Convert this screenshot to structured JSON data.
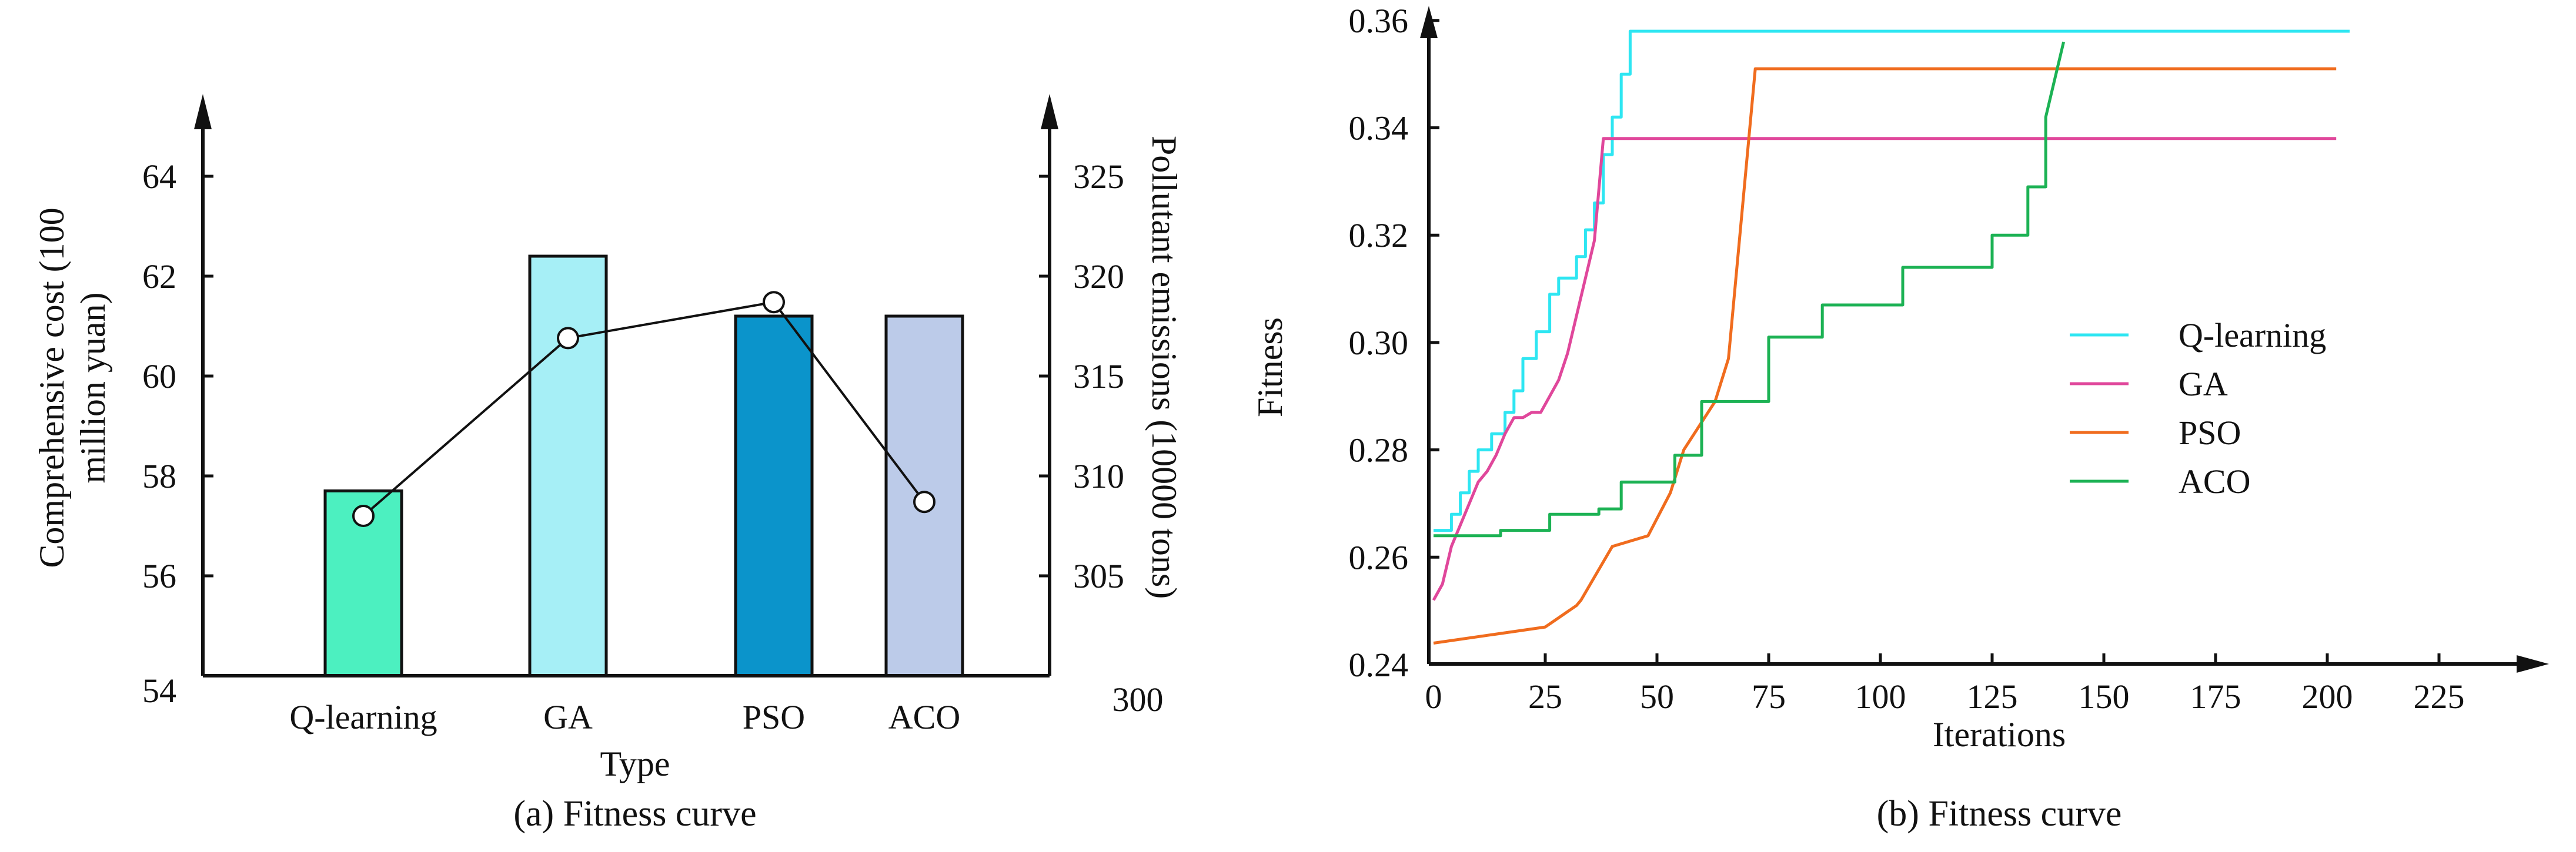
{
  "chart_data": [
    {
      "type": "bar",
      "caption": "(a) Fitness curve",
      "xlabel": "Type",
      "categories": [
        "Q-learning",
        "GA",
        "PSO",
        "ACO"
      ],
      "left_axis": {
        "label": "Comprehensive cost (100 million yuan)",
        "label_lines": [
          "Comprehensive cost (100",
          "million yuan)"
        ],
        "ylim": [
          54,
          66
        ],
        "ticks": [
          54,
          56,
          58,
          60,
          62,
          64
        ]
      },
      "right_axis": {
        "label": "Pollutant emissions (10000 tons)",
        "ylim": [
          300,
          330
        ],
        "ticks": [
          300,
          305,
          310,
          315,
          320,
          325
        ]
      },
      "series": [
        {
          "kind": "bar",
          "axis": "left",
          "values": [
            57.7,
            62.4,
            61.2,
            61.2
          ],
          "colors": [
            "#4cf0c0",
            "#a6eff6",
            "#0b94cb",
            "#bccbe9"
          ]
        },
        {
          "kind": "line",
          "axis": "right",
          "values": [
            308.0,
            316.9,
            318.7,
            308.7
          ],
          "color": "#111111"
        }
      ]
    },
    {
      "type": "line",
      "caption": "(b) Fitness curve",
      "xlabel": "Iterations",
      "ylabel": "Fitness",
      "xlim": [
        0,
        235
      ],
      "ylim": [
        0.24,
        0.364
      ],
      "xticks": [
        0,
        25,
        50,
        75,
        100,
        125,
        150,
        175,
        200,
        225
      ],
      "yticks": [
        "0.24",
        "0.26",
        "0.28",
        "0.30",
        "0.32",
        "0.34",
        "0.36"
      ],
      "legend_position": "right",
      "series": [
        {
          "name": "Q-learning",
          "color": "#2ee6f2",
          "x": [
            0,
            2,
            2,
            4,
            4,
            6,
            6,
            8,
            8,
            10,
            10,
            13,
            13,
            16,
            16,
            18,
            18,
            20,
            20,
            23,
            23,
            26,
            26,
            28,
            28,
            32,
            32,
            34,
            34,
            36,
            36,
            38,
            38,
            40,
            40,
            42,
            42,
            44,
            44,
            205
          ],
          "y": [
            0.265,
            0.265,
            0.265,
            0.265,
            0.268,
            0.268,
            0.272,
            0.272,
            0.276,
            0.276,
            0.28,
            0.28,
            0.283,
            0.283,
            0.287,
            0.287,
            0.291,
            0.291,
            0.297,
            0.297,
            0.302,
            0.302,
            0.309,
            0.309,
            0.312,
            0.312,
            0.316,
            0.316,
            0.321,
            0.321,
            0.326,
            0.326,
            0.335,
            0.335,
            0.342,
            0.342,
            0.35,
            0.35,
            0.358,
            0.358
          ]
        },
        {
          "name": "GA",
          "color": "#e0479b",
          "x": [
            0,
            2,
            4,
            6,
            8,
            10,
            12,
            14,
            16,
            18,
            20,
            22,
            24,
            26,
            28,
            30,
            32,
            34,
            36,
            38,
            202
          ],
          "y": [
            0.252,
            0.255,
            0.262,
            0.266,
            0.27,
            0.274,
            0.276,
            0.279,
            0.283,
            0.286,
            0.286,
            0.287,
            0.287,
            0.29,
            0.293,
            0.298,
            0.305,
            0.312,
            0.319,
            0.338,
            0.338
          ]
        },
        {
          "name": "PSO",
          "color": "#f06c1e",
          "x": [
            0,
            25,
            25,
            32,
            32,
            33,
            33,
            40,
            40,
            48,
            48,
            53,
            53,
            56,
            56,
            63,
            63,
            66,
            66,
            72,
            72,
            202
          ],
          "y": [
            0.244,
            0.247,
            0.247,
            0.251,
            0.251,
            0.252,
            0.252,
            0.262,
            0.262,
            0.264,
            0.264,
            0.272,
            0.272,
            0.28,
            0.28,
            0.289,
            0.289,
            0.297,
            0.297,
            0.351,
            0.351,
            0.351
          ]
        },
        {
          "name": "ACO",
          "color": "#1cb254",
          "x": [
            0,
            15,
            15,
            26,
            26,
            37,
            37,
            42,
            42,
            54,
            54,
            60,
            60,
            63,
            63,
            75,
            75,
            87,
            87,
            95,
            95,
            105,
            105,
            125,
            125,
            133,
            133,
            137,
            137,
            141
          ],
          "y": [
            0.264,
            0.264,
            0.265,
            0.265,
            0.268,
            0.268,
            0.269,
            0.269,
            0.274,
            0.274,
            0.279,
            0.279,
            0.289,
            0.289,
            0.289,
            0.289,
            0.301,
            0.301,
            0.307,
            0.307,
            0.307,
            0.307,
            0.314,
            0.314,
            0.32,
            0.32,
            0.329,
            0.329,
            0.342,
            0.356
          ]
        }
      ]
    }
  ]
}
